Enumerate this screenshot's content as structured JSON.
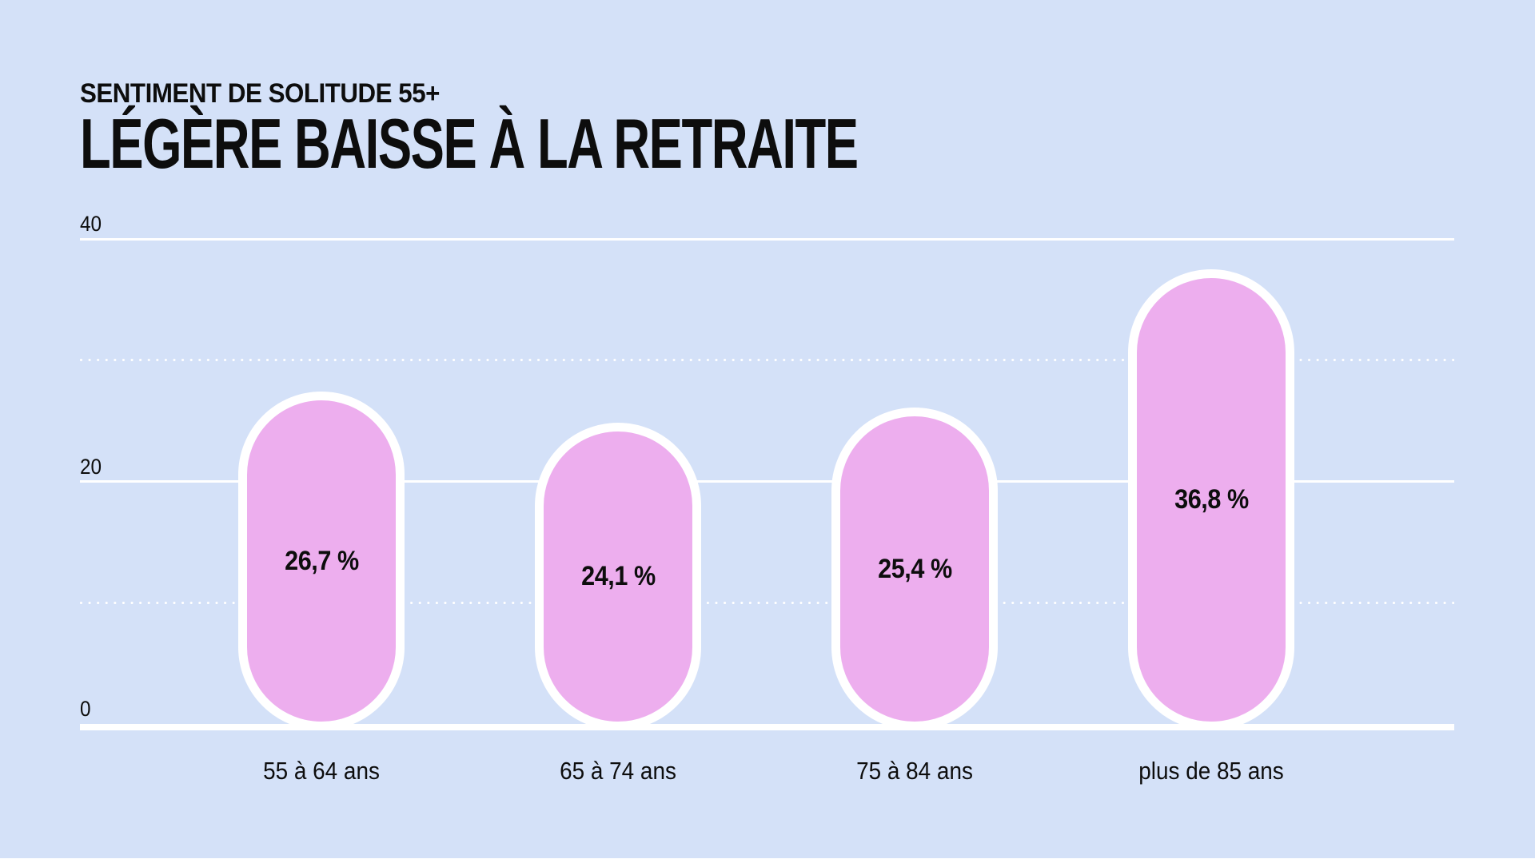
{
  "header": {
    "kicker": "SENTIMENT DE SOLITUDE 55+",
    "title": "LÉGÈRE BAISSE À LA RETRAITE"
  },
  "colors": {
    "background": "#d4e1f8",
    "bar_fill": "#edaeee",
    "bar_outline": "#ffffff",
    "gridline": "#ffffff",
    "text": "#0d0d0d"
  },
  "chart_data": {
    "type": "bar",
    "title": "LÉGÈRE BAISSE À LA RETRAITE",
    "subtitle": "SENTIMENT DE SOLITUDE 55+",
    "categories": [
      "55 à 64 ans",
      "65 à 74 ans",
      "75 à 84 ans",
      "plus de 85 ans"
    ],
    "values": [
      26.7,
      24.1,
      25.4,
      36.8
    ],
    "value_labels": [
      "26,7 %",
      "24,1 %",
      "25,4 %",
      "36,8 %"
    ],
    "xlabel": "",
    "ylabel": "",
    "ylim": [
      0,
      40
    ],
    "ytick_values": [
      40,
      20,
      0
    ],
    "ytick_labels": [
      "40",
      "20",
      "0"
    ],
    "gridlines": {
      "solid_at": [
        40,
        20
      ],
      "dotted_at": [
        30,
        10
      ],
      "baseline_at": 0
    },
    "legend": "none",
    "bar_shape": "pill-rounded-with-white-outline"
  }
}
